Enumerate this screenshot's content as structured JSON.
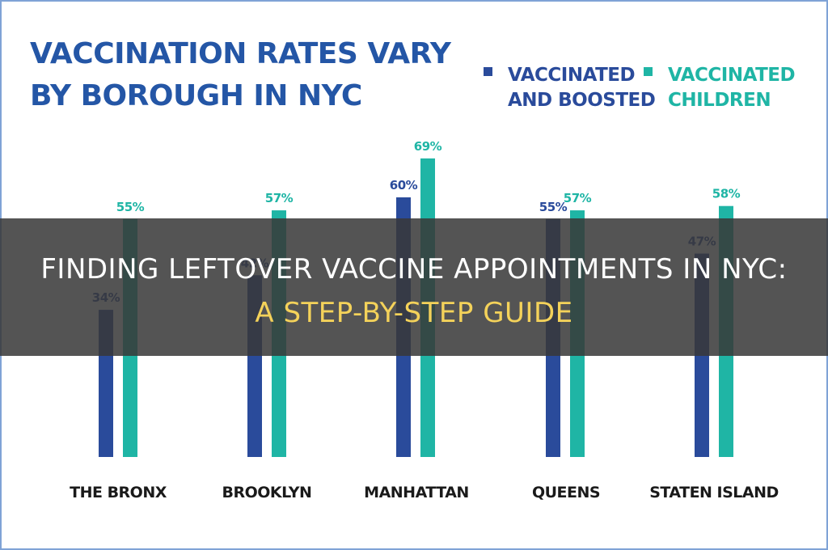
{
  "chart_data": {
    "type": "bar",
    "title_lines": [
      "VACCINATION RATES VARY",
      "BY BOROUGH IN NYC"
    ],
    "categories": [
      "THE BRONX",
      "BROOKLYN",
      "MANHATTAN",
      "QUEENS",
      "STATEN ISLAND"
    ],
    "series": [
      {
        "name_lines": [
          "VACCINATED",
          "AND BOOSTED"
        ],
        "color": "#2a4b9b",
        "values": [
          34,
          42,
          60,
          55,
          47
        ],
        "labels": [
          "34%",
          "42%",
          "60%",
          "55%",
          "47%"
        ]
      },
      {
        "name_lines": [
          "VACCINATED",
          "CHILDREN"
        ],
        "color": "#1fb5a5",
        "values": [
          55,
          57,
          69,
          57,
          58
        ],
        "labels": [
          "55%",
          "57%",
          "69%",
          "57%",
          "58%"
        ]
      }
    ],
    "ylim": [
      0,
      100
    ],
    "grid": false,
    "legend_position": "top-right",
    "frame_color": "#7fa3d6",
    "title_color": "#2456a6",
    "category_label_color": "#1a1a1a"
  },
  "overlay": {
    "line1": "FINDING LEFTOVER VACCINE APPOINTMENTS IN NYC:",
    "line2": "A STEP-BY-STEP GUIDE"
  }
}
